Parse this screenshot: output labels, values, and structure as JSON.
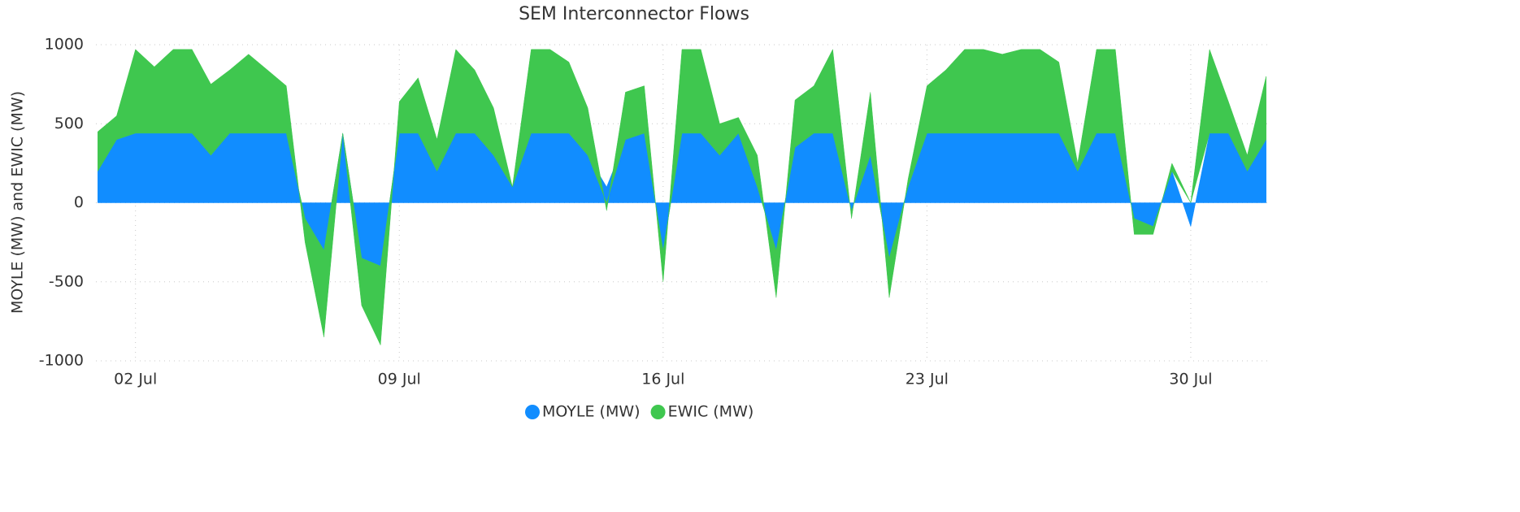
{
  "chart_data": {
    "type": "stacked_area",
    "title": "SEM Interconnector Flows",
    "y_label": "MOYLE (MW) and EWIC (MW)",
    "x": [
      1,
      1.5,
      2,
      2.5,
      3,
      3.5,
      4,
      4.5,
      5,
      5.5,
      6,
      6.5,
      7,
      7.5,
      8,
      8.5,
      9,
      9.5,
      10,
      10.5,
      11,
      11.5,
      12,
      12.5,
      13,
      13.5,
      14,
      14.5,
      15,
      15.5,
      16,
      16.5,
      17,
      17.5,
      18,
      18.5,
      19,
      19.5,
      20,
      20.5,
      21,
      21.5,
      22,
      22.5,
      23,
      23.5,
      24,
      24.5,
      25,
      25.5,
      26,
      26.5,
      27,
      27.5,
      28,
      28.5,
      29,
      29.5,
      30,
      30.5,
      31,
      31.5,
      32
    ],
    "series": [
      {
        "name": "MOYLE (MW)",
        "color": "#118dff",
        "values": [
          200,
          400,
          440,
          440,
          440,
          440,
          300,
          440,
          440,
          440,
          440,
          -100,
          -300,
          440,
          -350,
          -400,
          440,
          440,
          200,
          440,
          440,
          300,
          100,
          440,
          440,
          440,
          300,
          100,
          400,
          440,
          -300,
          440,
          440,
          300,
          440,
          100,
          -300,
          350,
          440,
          440,
          -50,
          300,
          -350,
          100,
          440,
          440,
          440,
          440,
          440,
          440,
          440,
          440,
          200,
          440,
          440,
          -100,
          -150,
          200,
          -150,
          440,
          440,
          200,
          400
        ]
      },
      {
        "name": "EWIC (MW)",
        "color": "#3fc74f",
        "values": [
          250,
          150,
          530,
          420,
          530,
          530,
          450,
          400,
          500,
          400,
          300,
          -150,
          -550,
          0,
          -300,
          -500,
          200,
          350,
          200,
          530,
          400,
          300,
          0,
          530,
          530,
          450,
          300,
          -50,
          300,
          300,
          -200,
          530,
          530,
          200,
          100,
          200,
          -300,
          300,
          300,
          530,
          -50,
          400,
          -250,
          50,
          300,
          400,
          530,
          530,
          500,
          530,
          530,
          450,
          50,
          530,
          530,
          -100,
          -50,
          50,
          0,
          530,
          200,
          100,
          400
        ]
      }
    ],
    "xlim": [
      0.95,
      32.05
    ],
    "xticks": [
      {
        "value": 2,
        "label": "02 Jul"
      },
      {
        "value": 9,
        "label": "09 Jul"
      },
      {
        "value": 16,
        "label": "16 Jul"
      },
      {
        "value": 23,
        "label": "23 Jul"
      },
      {
        "value": 30,
        "label": "30 Jul"
      }
    ],
    "ylim": [
      -1000,
      1000
    ],
    "yticks": [
      -1000,
      -500,
      0,
      500,
      1000
    ],
    "grid": true,
    "legend": "bottom"
  }
}
